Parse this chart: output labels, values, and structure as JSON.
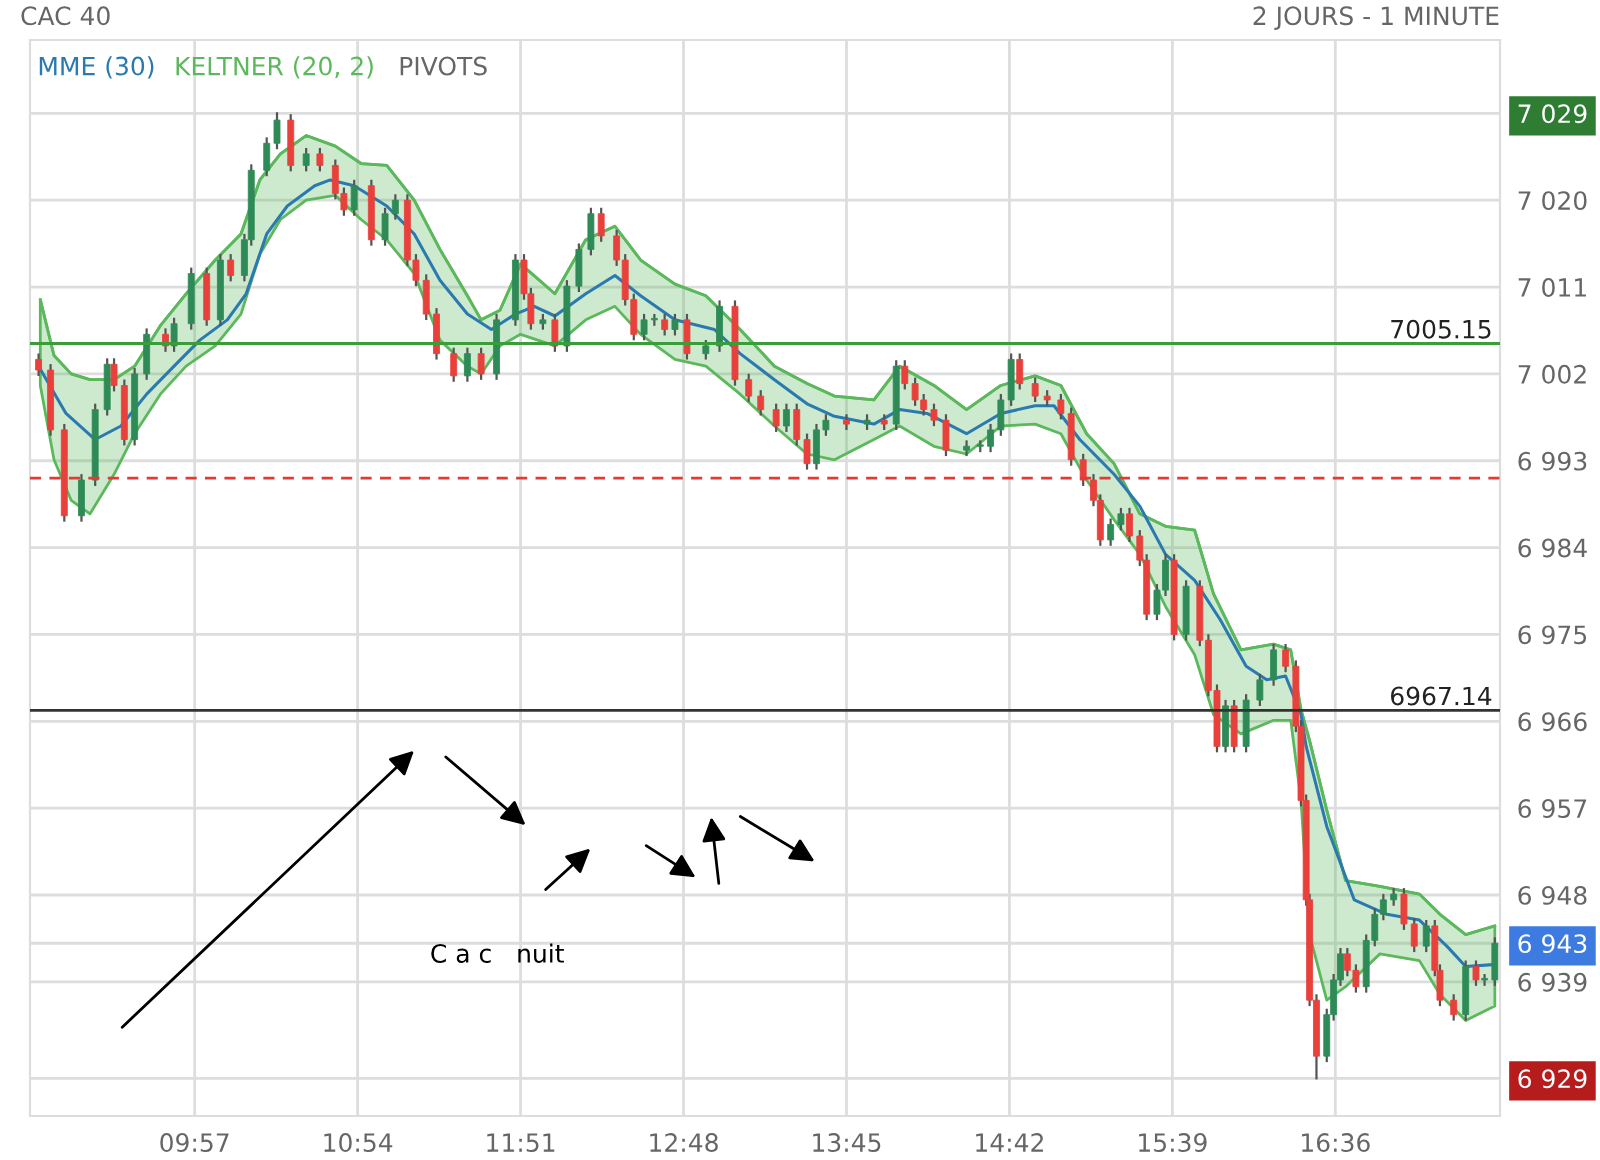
{
  "chart_data": {
    "type": "candlestick",
    "title": "CAC 40",
    "subtitle": "2 JOURS - 1 MINUTE",
    "xlim": [
      8.99,
      17.56
    ],
    "ylim": [
      6925.1,
      7036.6
    ],
    "xticks": [
      {
        "value": 9.95,
        "label": "09:57"
      },
      {
        "value": 10.9,
        "label": "10:54"
      },
      {
        "value": 11.85,
        "label": "11:51"
      },
      {
        "value": 12.8,
        "label": "12:48"
      },
      {
        "value": 13.75,
        "label": "13:45"
      },
      {
        "value": 14.7,
        "label": "14:42"
      },
      {
        "value": 15.65,
        "label": "15:39"
      },
      {
        "value": 16.6,
        "label": "16:36"
      }
    ],
    "yticks": [
      {
        "value": 6929,
        "label": "6 929"
      },
      {
        "value": 6943,
        "label": "6 943"
      },
      {
        "value": 7029,
        "label": "7 029"
      },
      {
        "value": 6939,
        "label": "6 939"
      },
      {
        "value": 6948,
        "label": "6 948"
      },
      {
        "value": 6957,
        "label": "6 957"
      },
      {
        "value": 6966,
        "label": "6 966"
      },
      {
        "value": 6975,
        "label": "6 975"
      },
      {
        "value": 6984,
        "label": "6 984"
      },
      {
        "value": 6993,
        "label": "6 993"
      },
      {
        "value": 7002,
        "label": "7 002"
      },
      {
        "value": 7011,
        "label": "7 011"
      },
      {
        "value": 7020,
        "label": "7 020"
      }
    ],
    "grid": true,
    "legend": "top left",
    "ref_lines": [
      {
        "axis": "y",
        "value": 7005.15,
        "label": "7005.15",
        "color": "#3a9d3a",
        "line_style": "solid"
      },
      {
        "axis": "y",
        "value": 6967.14,
        "label": "6967.14",
        "color": "#333333",
        "line_style": "solid"
      },
      {
        "axis": "y",
        "value": 6991.2,
        "color": "#e53935",
        "line_style": "dashed"
      }
    ],
    "annotations": [
      "PIVOTS",
      "C a c   nuit"
    ],
    "series": [
      {
        "type": "line",
        "name": "KELTNER (20, 2)",
        "color": "#5cb85c",
        "x": [
          9.05,
          9.13,
          9.23,
          9.34,
          9.48,
          9.6,
          9.75,
          9.9,
          10.07,
          10.22,
          10.33,
          10.45,
          10.6,
          10.77,
          10.92,
          11.07,
          11.23,
          11.38,
          11.54,
          11.62,
          11.73,
          11.85,
          12.05,
          12.23,
          12.4,
          12.55,
          12.75,
          12.93,
          13.13,
          13.33,
          13.52,
          13.68,
          13.91,
          14.06,
          14.26,
          14.45,
          14.65,
          14.85,
          15.0,
          15.15,
          15.31,
          15.46,
          15.61,
          15.78,
          15.89,
          16.05,
          16.24,
          16.34,
          16.4,
          16.45,
          16.55,
          16.66,
          16.86,
          17.09,
          17.21,
          17.36,
          17.53
        ],
        "values": [
          7009.7,
          7003.9,
          7002.0,
          7001.4,
          7001.4,
          7002.8,
          7007.0,
          7010.3,
          7013.8,
          7016.5,
          7022.1,
          7024.8,
          7026.7,
          7025.6,
          7023.8,
          7023.6,
          7020.0,
          7014.9,
          7010.1,
          7007.6,
          7008.6,
          7013.4,
          7010.3,
          7015.9,
          7017.3,
          7013.8,
          7011.3,
          7010.1,
          7006.6,
          7002.8,
          7001.0,
          6999.7,
          6999.3,
          7002.8,
          7000.8,
          6998.3,
          7000.8,
          7001.8,
          7000.8,
          6995.8,
          6992.7,
          6987.5,
          6986.2,
          6985.8,
          6979.2,
          6973.4,
          6974.0,
          6973.4,
          6967.2,
          6964.0,
          6956.8,
          6949.5,
          6948.9,
          6948.1,
          6946.0,
          6943.9,
          6944.8
        ],
        "upper": [
          7009.7,
          7003.9,
          7002.0,
          7001.4,
          7001.4,
          7002.8,
          7007.0,
          7010.3,
          7013.8,
          7016.5,
          7022.1,
          7024.8,
          7026.7,
          7025.6,
          7023.8,
          7023.6,
          7020.0,
          7014.9,
          7010.1,
          7007.6,
          7008.6,
          7013.4,
          7010.3,
          7015.9,
          7017.3,
          7013.8,
          7011.3,
          7010.1,
          7006.6,
          7002.8,
          7001.0,
          6999.7,
          6999.3,
          7002.8,
          7000.8,
          6998.3,
          7000.8,
          7001.8,
          7000.8,
          6995.8,
          6992.7,
          6987.5,
          6986.2,
          6985.8,
          6979.2,
          6973.4,
          6974.0,
          6973.4,
          6967.2,
          6964.0,
          6956.8,
          6949.5,
          6948.9,
          6948.1,
          6946.0,
          6943.9,
          6944.8
        ],
        "lower": [
          7000.8,
          6993.1,
          6988.9,
          6987.5,
          6991.6,
          6995.8,
          6999.9,
          7002.8,
          7004.9,
          7008.2,
          7014.4,
          7018.0,
          7020.0,
          7020.5,
          7018.0,
          7015.9,
          7012.4,
          7005.5,
          7002.8,
          7002.0,
          7004.9,
          7006.1,
          7004.9,
          7007.6,
          7009.0,
          7006.1,
          7003.5,
          7002.8,
          6999.9,
          6996.6,
          6993.7,
          6993.1,
          6995.2,
          6996.6,
          6994.5,
          6993.7,
          6996.6,
          6996.8,
          6995.8,
          6991.0,
          6986.9,
          6983.3,
          6977.9,
          6972.9,
          6966.7,
          6964.7,
          6966.1,
          6966.1,
          6957.8,
          6943.9,
          6937.1,
          6938.5,
          6941.9,
          6941.2,
          6937.7,
          6935.0,
          6936.5
        ]
      },
      {
        "type": "line",
        "name": "MME (30)",
        "color": "#2a7ab0",
        "x": [
          9.04,
          9.2,
          9.37,
          9.52,
          9.67,
          9.83,
          9.98,
          10.14,
          10.25,
          10.37,
          10.49,
          10.65,
          10.74,
          10.88,
          11.07,
          11.23,
          11.38,
          11.54,
          11.68,
          11.82,
          11.93,
          12.05,
          12.23,
          12.4,
          12.55,
          12.75,
          12.98,
          13.13,
          13.33,
          13.52,
          13.68,
          13.91,
          14.06,
          14.22,
          14.45,
          14.65,
          14.85,
          14.96,
          15.11,
          15.31,
          15.46,
          15.61,
          15.78,
          15.93,
          16.08,
          16.2,
          16.31,
          16.4,
          16.43,
          16.55,
          16.71,
          16.9,
          17.09,
          17.25,
          17.36,
          17.53
        ],
        "values": [
          7002.8,
          6997.9,
          6995.2,
          6996.6,
          6999.9,
          7002.8,
          7005.5,
          7007.6,
          7010.3,
          7016.5,
          7019.4,
          7021.5,
          7022.1,
          7021.5,
          7019.4,
          7016.5,
          7011.7,
          7008.2,
          7006.6,
          7008.2,
          7009.0,
          7008.0,
          7010.3,
          7012.2,
          7010.1,
          7007.6,
          7006.6,
          7004.1,
          7001.4,
          6998.9,
          6997.6,
          6996.8,
          6998.3,
          6997.9,
          6995.8,
          6997.9,
          6998.7,
          6998.7,
          6995.2,
          6991.6,
          6988.3,
          6983.3,
          6980.6,
          6976.5,
          6971.7,
          6970.3,
          6970.7,
          6966.7,
          6963.4,
          6955.1,
          6947.5,
          6946.0,
          6945.4,
          6942.7,
          6940.6,
          6940.8
        ]
      },
      {
        "type": "candlestick",
        "colors": [
          "#e8413c",
          "#e8413c",
          "#e8413c",
          "#2e8b57",
          "#2e8b57",
          "#2e8b57",
          "#e8413c",
          "#e8413c",
          "#2e8b57",
          "#2e8b57",
          "#e8413c",
          "#2e8b57",
          "#2e8b57",
          "#e8413c",
          "#2e8b57",
          "#e8413c",
          "#2e8b57",
          "#2e8b57",
          "#2e8b57",
          "#2e8b57",
          "#e8413c",
          "#2e8b57",
          "#e8413c",
          "#e8413c",
          "#e8413c",
          "#2e8b57",
          "#e8413c",
          "#2e8b57",
          "#2e8b57",
          "#e8413c",
          "#e8413c",
          "#e8413c",
          "#e8413c",
          "#e8413c",
          "#2e8b57",
          "#e8413c",
          "#2e8b57",
          "#2e8b57",
          "#e8413c",
          "#e8413c",
          "#2e8b57",
          "#e8413c",
          "#2e8b57",
          "#2e8b57",
          "#2e8b57",
          "#e8413c",
          "#e8413c",
          "#e8413c",
          "#e8413c",
          "#2e8b57",
          "#2e8b57",
          "#e8413c",
          "#2e8b57",
          "#e8413c",
          "#2e8b57",
          "#2e8b57",
          "#e8413c",
          "#e8413c",
          "#e8413c",
          "#e8413c",
          "#2e8b57",
          "#e8413c",
          "#e8413c",
          "#2e8b57",
          "#2e8b57",
          "#e8413c",
          "#2e8b57",
          "#e8413c",
          "#2e8b57",
          "#e8413c",
          "#e8413c",
          "#e8413c",
          "#e8413c",
          "#e8413c",
          "#2e8b57",
          "#2e8b57",
          "#2e8b57",
          "#2e8b57",
          "#2e8b57",
          "#e8413c",
          "#e8413c",
          "#e8413c",
          "#e8413c",
          "#e8413c",
          "#e8413c",
          "#e8413c",
          "#e8413c",
          "#2e8b57",
          "#2e8b57",
          "#e8413c",
          "#e8413c",
          "#e8413c",
          "#2e8b57",
          "#2e8b57",
          "#e8413c",
          "#2e8b57",
          "#e8413c",
          "#e8413c",
          "#e8413c",
          "#2e8b57",
          "#e8413c",
          "#2e8b57",
          "#2e8b57",
          "#2e8b57",
          "#e8413c",
          "#e8413c",
          "#e8413c",
          "#e8413c",
          "#e8413c",
          "#e8413c",
          "#2e8b57",
          "#2e8b57",
          "#2e8b57",
          "#e8413c",
          "#e8413c",
          "#2e8b57",
          "#2e8b57",
          "#2e8b57",
          "#2e8b57",
          "#e8413c",
          "#e8413c",
          "#2e8b57",
          "#e8413c",
          "#e8413c",
          "#e8413c",
          "#2e8b57",
          "#e8413c",
          "#2e8b57",
          "#2e8b57"
        ],
        "x": [
          9.04,
          9.11,
          9.19,
          9.29,
          9.37,
          9.44,
          9.48,
          9.54,
          9.6,
          9.67,
          9.78,
          9.83,
          9.93,
          10.02,
          10.1,
          10.16,
          10.24,
          10.28,
          10.37,
          10.43,
          10.51,
          10.6,
          10.68,
          10.77,
          10.82,
          10.88,
          10.98,
          11.06,
          11.12,
          11.19,
          11.24,
          11.3,
          11.36,
          11.46,
          11.54,
          11.62,
          11.71,
          11.82,
          11.87,
          11.91,
          11.98,
          12.05,
          12.12,
          12.19,
          12.26,
          12.32,
          12.41,
          12.46,
          12.51,
          12.57,
          12.63,
          12.69,
          12.75,
          12.82,
          12.93,
          13.01,
          13.1,
          13.18,
          13.25,
          13.34,
          13.4,
          13.46,
          13.52,
          13.575,
          13.63,
          13.75,
          13.87,
          13.97,
          14.04,
          14.09,
          14.15,
          14.2,
          14.26,
          14.33,
          14.45,
          14.53,
          14.59,
          14.65,
          14.71,
          14.76,
          14.85,
          14.92,
          15.0,
          15.06,
          15.13,
          15.19,
          15.23,
          15.29,
          15.35,
          15.4,
          15.46,
          15.5,
          15.56,
          15.61,
          15.66,
          15.73,
          15.81,
          15.86,
          15.91,
          15.96,
          16.01,
          16.08,
          16.16,
          16.24,
          16.31,
          16.37,
          16.4,
          16.43,
          16.45,
          16.49,
          16.55,
          16.59,
          16.63,
          16.67,
          16.72,
          16.78,
          16.83,
          16.88,
          16.94,
          17.0,
          17.06,
          17.13,
          17.18,
          17.21,
          17.29,
          17.36,
          17.42,
          17.47,
          17.53
        ],
        "ohlc": [
          [
            7003.5,
            7004.0,
            7001.9,
            7002.4
          ],
          [
            7002.4,
            7002.9,
            6995.7,
            6996.2
          ],
          [
            6996.2,
            6996.7,
            6986.8,
            6987.3
          ],
          [
            6987.3,
            6991.5,
            6986.8,
            6991.0
          ],
          [
            6991.0,
            6998.8,
            6990.5,
            6998.3
          ],
          [
            6998.3,
            7003.5,
            6997.8,
            7003.0
          ],
          [
            7003.0,
            7003.5,
            7000.3,
            7000.8
          ],
          [
            7000.8,
            7001.3,
            6994.7,
            6995.2
          ],
          [
            6995.2,
            7002.5,
            6994.7,
            7002.0
          ],
          [
            7002.0,
            7006.6,
            7001.5,
            7006.1
          ],
          [
            7006.1,
            7006.6,
            7004.4,
            7004.9
          ],
          [
            7004.9,
            7007.7,
            7004.4,
            7007.2
          ],
          [
            7007.2,
            7012.9,
            7006.7,
            7012.4
          ],
          [
            7012.4,
            7012.9,
            7007.1,
            7007.6
          ],
          [
            7007.6,
            7014.3,
            7007.1,
            7013.8
          ],
          [
            7013.8,
            7014.3,
            7011.7,
            7012.2
          ],
          [
            7012.2,
            7016.4,
            7011.7,
            7015.9
          ],
          [
            7015.9,
            7023.6,
            7015.4,
            7023.1
          ],
          [
            7023.1,
            7026.4,
            7022.6,
            7025.9
          ],
          [
            7025.9,
            7029.0,
            7025.4,
            7028.3
          ],
          [
            7028.3,
            7028.8,
            7023.1,
            7023.6
          ],
          [
            7023.6,
            7025.3,
            7023.1,
            7024.8
          ],
          [
            7024.8,
            7025.3,
            7023.1,
            7023.6
          ],
          [
            7023.6,
            7024.1,
            7020.2,
            7020.7
          ],
          [
            7020.7,
            7021.2,
            7018.5,
            7019.0
          ],
          [
            7019.0,
            7022.0,
            7018.5,
            7021.5
          ],
          [
            7021.5,
            7022.0,
            7015.4,
            7015.9
          ],
          [
            7015.9,
            7019.1,
            7015.4,
            7018.6
          ],
          [
            7018.6,
            7020.5,
            7018.1,
            7020.0
          ],
          [
            7020.0,
            7020.5,
            7013.3,
            7013.8
          ],
          [
            7013.8,
            7014.3,
            7011.2,
            7011.7
          ],
          [
            7011.7,
            7012.2,
            7007.7,
            7008.2
          ],
          [
            7008.2,
            7008.7,
            7003.6,
            7004.1
          ],
          [
            7004.1,
            7004.6,
            7001.3,
            7001.8
          ],
          [
            7001.8,
            7004.6,
            7001.3,
            7004.1
          ],
          [
            7004.1,
            7004.6,
            7001.5,
            7002.0
          ],
          [
            7002.0,
            7008.1,
            7001.5,
            7007.6
          ],
          [
            7007.6,
            7014.3,
            7007.1,
            7013.8
          ],
          [
            7013.8,
            7014.3,
            7009.8,
            7010.3
          ],
          [
            7010.3,
            7010.8,
            7006.7,
            7007.2
          ],
          [
            7007.2,
            7008.1,
            7006.7,
            7007.6
          ],
          [
            7007.6,
            7008.1,
            7004.4,
            7004.9
          ],
          [
            7004.9,
            7011.6,
            7004.4,
            7011.1
          ],
          [
            7011.1,
            7015.4,
            7010.6,
            7014.9
          ],
          [
            7014.9,
            7019.1,
            7014.4,
            7018.6
          ],
          [
            7018.6,
            7019.1,
            7015.8,
            7016.3
          ],
          [
            7016.3,
            7016.8,
            7013.3,
            7013.8
          ],
          [
            7013.8,
            7014.3,
            7009.2,
            7009.7
          ],
          [
            7009.7,
            7010.2,
            7005.6,
            7006.1
          ],
          [
            7006.1,
            7008.1,
            7005.6,
            7007.6
          ],
          [
            7007.6,
            7008.1,
            7007.1,
            7007.6
          ],
          [
            7007.6,
            7008.1,
            7006.1,
            7006.6
          ],
          [
            7006.6,
            7008.1,
            7006.1,
            7007.6
          ],
          [
            7007.6,
            7008.1,
            7003.6,
            7004.1
          ],
          [
            7004.1,
            7005.4,
            7003.6,
            7004.9
          ],
          [
            7004.9,
            7009.5,
            7004.4,
            7009.0
          ],
          [
            7009.0,
            7009.5,
            7000.9,
            7001.4
          ],
          [
            7001.4,
            7001.9,
            6999.2,
            6999.7
          ],
          [
            6999.7,
            7000.2,
            6997.8,
            6998.3
          ],
          [
            6998.3,
            6998.8,
            6996.1,
            6996.6
          ],
          [
            6996.6,
            6998.8,
            6996.1,
            6998.3
          ],
          [
            6998.3,
            6998.8,
            6994.7,
            6995.2
          ],
          [
            6995.2,
            6995.7,
            6992.2,
            6992.7
          ],
          [
            6992.7,
            6996.7,
            6992.2,
            6996.2
          ],
          [
            6996.2,
            6997.7,
            6995.7,
            6997.2
          ],
          [
            6997.2,
            6997.7,
            6996.3,
            6996.8
          ],
          [
            6996.8,
            6997.7,
            6996.3,
            6997.2
          ],
          [
            6997.2,
            6997.7,
            6996.3,
            6996.8
          ],
          [
            6996.8,
            7003.3,
            6996.3,
            7002.8
          ],
          [
            7002.8,
            7003.3,
            7000.5,
            7001.0
          ],
          [
            7001.0,
            7001.5,
            6998.8,
            6999.3
          ],
          [
            6999.3,
            6999.8,
            6997.8,
            6998.3
          ],
          [
            6998.3,
            6998.8,
            6996.7,
            6997.2
          ],
          [
            6997.2,
            6997.7,
            6993.6,
            6994.1
          ],
          [
            6994.1,
            6995.0,
            6993.6,
            6994.5
          ],
          [
            6994.5,
            6995.0,
            6994.0,
            6994.5
          ],
          [
            6994.5,
            6996.7,
            6994.0,
            6996.2
          ],
          [
            6996.2,
            6999.8,
            6995.7,
            6999.3
          ],
          [
            6999.3,
            7004.0,
            6998.8,
            7003.5
          ],
          [
            7003.5,
            7004.0,
            7000.5,
            7001.0
          ],
          [
            7001.0,
            7001.5,
            6999.2,
            6999.7
          ],
          [
            6999.7,
            7000.2,
            6998.8,
            6999.3
          ],
          [
            6999.3,
            6999.8,
            6997.4,
            6997.9
          ],
          [
            6997.9,
            6998.4,
            6992.6,
            6993.1
          ],
          [
            6993.1,
            6993.6,
            6990.5,
            6991.0
          ],
          [
            6991.0,
            6991.5,
            6988.4,
            6988.9
          ],
          [
            6988.9,
            6989.4,
            6984.3,
            6984.8
          ],
          [
            6984.8,
            6986.9,
            6984.3,
            6986.4
          ],
          [
            6986.4,
            6988.0,
            6985.9,
            6987.5
          ],
          [
            6987.5,
            6988.0,
            6984.7,
            6985.2
          ],
          [
            6985.2,
            6985.7,
            6982.2,
            6982.7
          ],
          [
            6982.7,
            6983.2,
            6976.6,
            6977.1
          ],
          [
            6977.1,
            6980.1,
            6976.6,
            6979.6
          ],
          [
            6979.6,
            6983.2,
            6979.1,
            6982.7
          ],
          [
            6982.7,
            6983.2,
            6974.5,
            6975.0
          ],
          [
            6975.0,
            6980.5,
            6974.5,
            6980.0
          ],
          [
            6980.0,
            6980.5,
            6973.9,
            6974.4
          ],
          [
            6974.4,
            6974.9,
            6968.7,
            6969.2
          ],
          [
            6969.2,
            6969.7,
            6962.9,
            6963.4
          ],
          [
            6963.4,
            6968.1,
            6962.9,
            6967.6
          ],
          [
            6967.6,
            6968.1,
            6962.9,
            6963.4
          ],
          [
            6963.4,
            6968.7,
            6962.9,
            6968.2
          ],
          [
            6968.2,
            6970.8,
            6967.7,
            6970.3
          ],
          [
            6970.3,
            6973.9,
            6969.8,
            6973.4
          ],
          [
            6973.4,
            6973.9,
            6971.2,
            6971.7
          ],
          [
            6971.7,
            6972.2,
            6965.0,
            6965.5
          ],
          [
            6965.5,
            6966.0,
            6957.3,
            6957.8
          ],
          [
            6957.8,
            6958.3,
            6947.0,
            6947.5
          ],
          [
            6947.5,
            6948.0,
            6936.6,
            6937.1
          ],
          [
            6937.1,
            6937.6,
            6929.0,
            6931.3
          ],
          [
            6931.3,
            6936.1,
            6930.8,
            6935.6
          ],
          [
            6935.6,
            6939.7,
            6935.1,
            6939.2
          ],
          [
            6939.2,
            6942.4,
            6938.7,
            6941.9
          ],
          [
            6941.9,
            6942.4,
            6939.7,
            6940.2
          ],
          [
            6940.2,
            6940.7,
            6938.0,
            6938.5
          ],
          [
            6938.5,
            6943.8,
            6938.0,
            6943.3
          ],
          [
            6943.3,
            6946.5,
            6942.8,
            6946.0
          ],
          [
            6946.0,
            6948.0,
            6945.5,
            6947.5
          ],
          [
            6947.5,
            6948.6,
            6947.0,
            6948.1
          ],
          [
            6948.1,
            6948.6,
            6944.5,
            6945.0
          ],
          [
            6945.0,
            6945.5,
            6942.2,
            6942.7
          ],
          [
            6942.7,
            6945.3,
            6942.2,
            6944.8
          ],
          [
            6944.8,
            6945.3,
            6939.7,
            6940.2
          ],
          [
            6940.2,
            6940.7,
            6936.6,
            6937.1
          ],
          [
            6937.1,
            6937.6,
            6935.1,
            6935.6
          ],
          [
            6935.6,
            6941.1,
            6935.1,
            6940.6
          ],
          [
            6940.6,
            6941.1,
            6938.7,
            6939.2
          ],
          [
            6939.2,
            6939.7,
            6938.7,
            6939.2
          ],
          [
            6939.2,
            6943.5,
            6938.7,
            6943.0
          ]
        ]
      }
    ]
  }
}
